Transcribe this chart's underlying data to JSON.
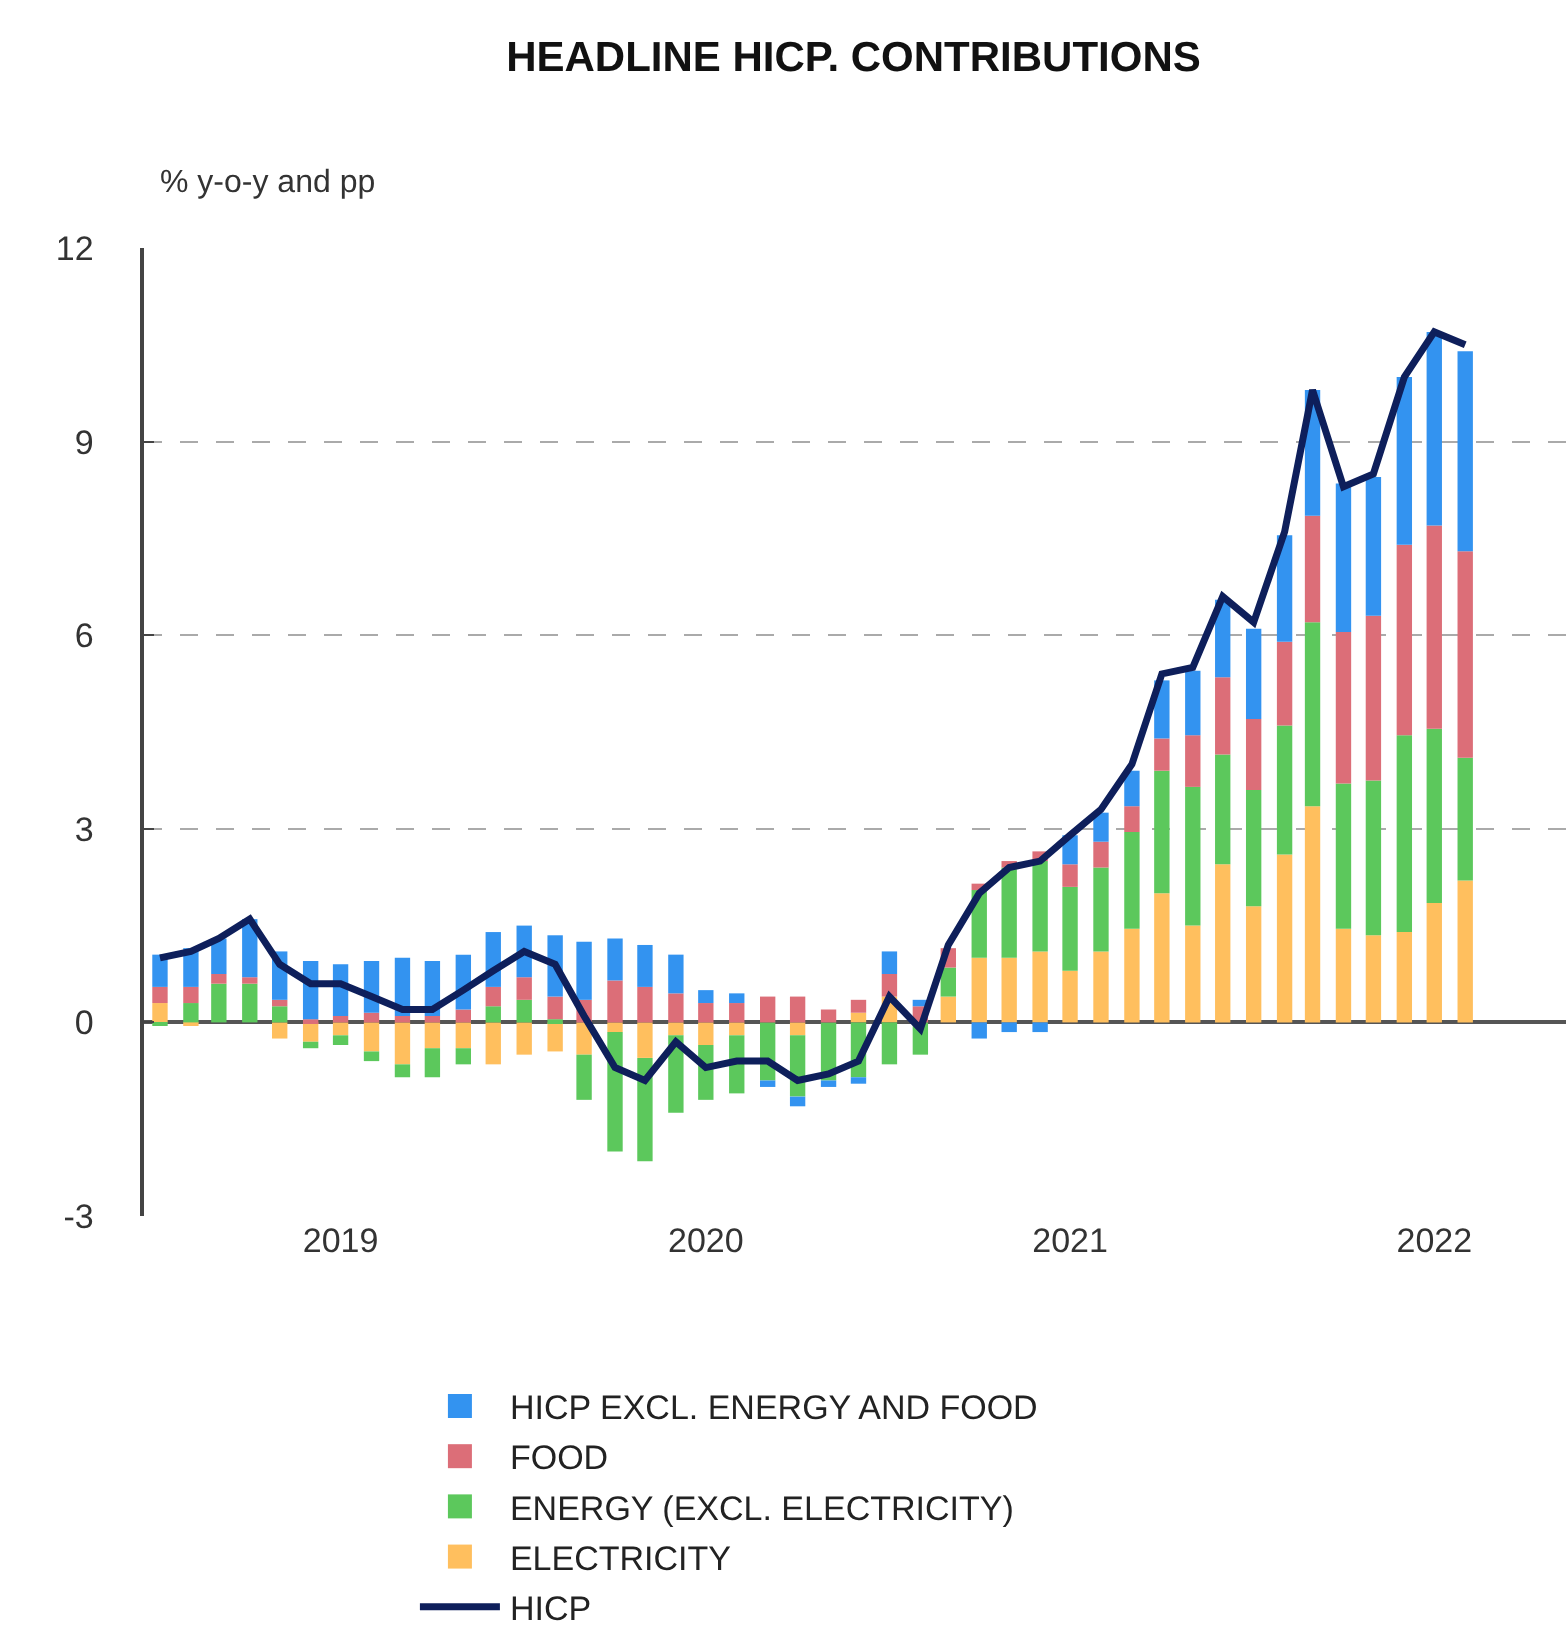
{
  "chart_data": {
    "type": "bar",
    "title": "HEADLINE HICP. CONTRIBUTIONS",
    "ylabel": "% y-o-y and pp",
    "stacked": true,
    "x": [
      "2019-01",
      "2019-02",
      "2019-03",
      "2019-04",
      "2019-05",
      "2019-06",
      "2019-07",
      "2019-08",
      "2019-09",
      "2019-10",
      "2019-11",
      "2019-12",
      "2020-01",
      "2020-02",
      "2020-03",
      "2020-04",
      "2020-05",
      "2020-06",
      "2020-07",
      "2020-08",
      "2020-09",
      "2020-10",
      "2020-11",
      "2020-12",
      "2021-01",
      "2021-02",
      "2021-03",
      "2021-04",
      "2021-05",
      "2021-06",
      "2021-07",
      "2021-08",
      "2021-09",
      "2021-10",
      "2021-11",
      "2021-12",
      "2022-01",
      "2022-02",
      "2022-03",
      "2022-04",
      "2022-05",
      "2022-06",
      "2022-07",
      "2022-08"
    ],
    "series": [
      {
        "name": "ELECTRICITY",
        "color": "#ffbf5e",
        "values": [
          0.3,
          -0.05,
          0,
          0,
          -0.25,
          -0.3,
          -0.2,
          -0.45,
          -0.65,
          -0.4,
          -0.4,
          -0.65,
          -0.5,
          -0.45,
          -0.5,
          -0.15,
          -0.55,
          -0.2,
          -0.35,
          -0.2,
          0,
          -0.2,
          0,
          0.15,
          0.4,
          0,
          0.4,
          1.0,
          1.0,
          1.1,
          0.8,
          1.1,
          1.45,
          2.0,
          1.5,
          2.45,
          1.8,
          2.6,
          3.35,
          1.45,
          1.35,
          1.4,
          1.85,
          2.2
        ]
      },
      {
        "name": "ENERGY (EXCL. ELECTRICITY)",
        "color": "#5cc85c",
        "values": [
          -0.05,
          0.3,
          0.6,
          0.6,
          0.25,
          -0.1,
          -0.15,
          -0.15,
          -0.2,
          -0.45,
          -0.25,
          0.25,
          0.35,
          0.05,
          -0.7,
          -1.85,
          -1.6,
          -1.2,
          -0.85,
          -0.9,
          -0.9,
          -0.95,
          -0.9,
          -0.85,
          -0.65,
          -0.5,
          0.45,
          1.05,
          1.4,
          1.4,
          1.3,
          1.3,
          1.5,
          1.9,
          2.15,
          1.7,
          1.8,
          2.0,
          2.85,
          2.25,
          2.4,
          3.05,
          2.7,
          1.9
        ]
      },
      {
        "name": "FOOD",
        "color": "#dc6e78",
        "values": [
          0.25,
          0.25,
          0.15,
          0.1,
          0.1,
          0.05,
          0.1,
          0.15,
          0.1,
          0.1,
          0.2,
          0.3,
          0.35,
          0.35,
          0.35,
          0.65,
          0.55,
          0.45,
          0.3,
          0.3,
          0.4,
          0.4,
          0.2,
          0.2,
          0.35,
          0.25,
          0.3,
          0.1,
          0.1,
          0.15,
          0.35,
          0.4,
          0.4,
          0.5,
          0.8,
          1.2,
          1.1,
          1.3,
          1.65,
          2.35,
          2.55,
          2.95,
          3.15,
          3.2
        ]
      },
      {
        "name": "HICP EXCL. ENERGY AND FOOD",
        "color": "#3393f0",
        "values": [
          0.5,
          0.6,
          0.55,
          0.9,
          0.75,
          0.9,
          0.8,
          0.8,
          0.9,
          0.85,
          0.85,
          0.85,
          0.8,
          0.95,
          0.9,
          0.65,
          0.65,
          0.6,
          0.2,
          0.15,
          -0.1,
          -0.15,
          -0.1,
          -0.1,
          0.35,
          0.1,
          null,
          -0.25,
          -0.15,
          -0.15,
          0.45,
          0.45,
          0.55,
          0.9,
          1.0,
          1.2,
          1.4,
          1.65,
          1.95,
          2.3,
          2.15,
          2.6,
          3.0,
          3.1
        ]
      },
      {
        "name": "HICP",
        "type": "line",
        "color": "#0e1f5b",
        "values": [
          1.0,
          1.1,
          1.3,
          1.6,
          0.9,
          0.6,
          0.6,
          0.4,
          0.2,
          0.2,
          0.5,
          0.8,
          1.1,
          0.9,
          0.1,
          -0.7,
          -0.9,
          -0.3,
          -0.7,
          -0.6,
          -0.6,
          -0.9,
          -0.8,
          -0.6,
          0.4,
          -0.1,
          1.2,
          2.0,
          2.4,
          2.5,
          2.9,
          3.3,
          4.0,
          5.4,
          5.5,
          6.6,
          6.2,
          7.6,
          9.8,
          8.3,
          8.5,
          10.0,
          10.7,
          10.5
        ]
      }
    ],
    "xlim": [
      "2018-12-16",
      "2022-11-10"
    ],
    "xticks": [
      {
        "value": "2019-07",
        "label": "2019"
      },
      {
        "value": "2020-07",
        "label": "2020"
      },
      {
        "value": "2021-07",
        "label": "2021"
      },
      {
        "value": "2022-07",
        "label": "2022"
      }
    ],
    "ylim": [
      -3,
      12
    ],
    "yticks": [
      -3,
      0,
      3,
      6,
      9,
      12
    ],
    "grid": "y",
    "legend": "bottom"
  }
}
